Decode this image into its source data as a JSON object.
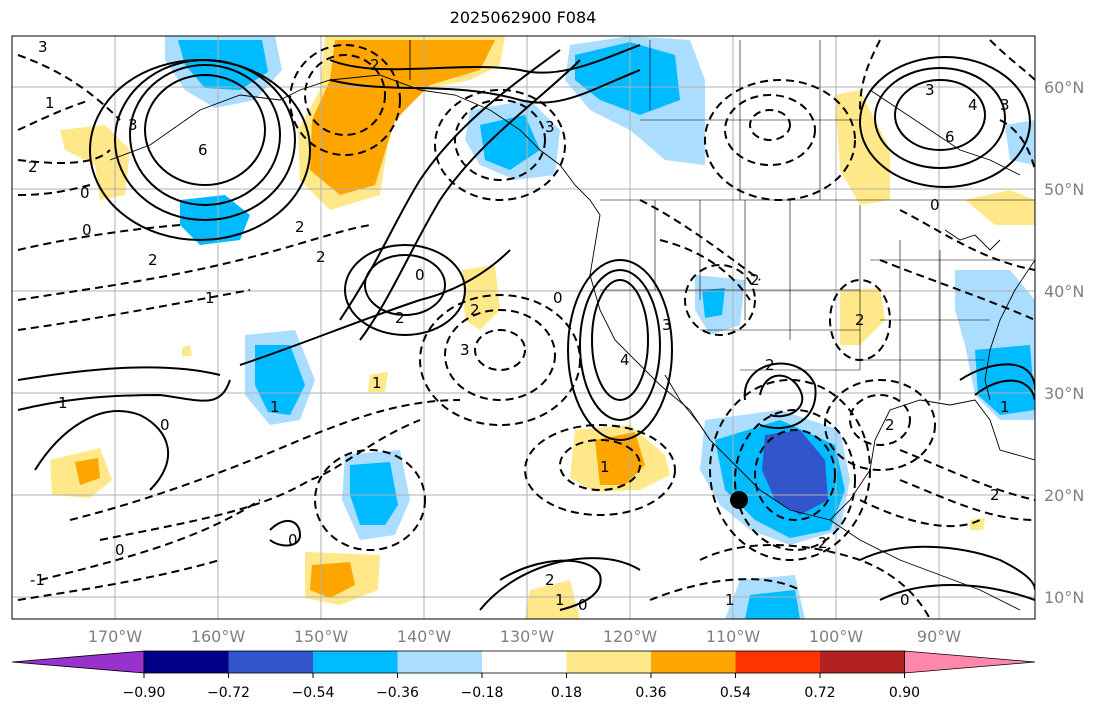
{
  "title": "2025062900 F084",
  "lon_labels": [
    "170°W",
    "160°W",
    "150°W",
    "140°W",
    "130°W",
    "120°W",
    "110°W",
    "100°W",
    "90°W"
  ],
  "lat_labels": [
    "60°N",
    "50°N",
    "40°N",
    "30°N",
    "20°N",
    "10°N"
  ],
  "colorbar": {
    "ticks": [
      "−0.90",
      "−0.72",
      "−0.54",
      "−0.36",
      "−0.18",
      "0.18",
      "0.36",
      "0.54",
      "0.72",
      "0.90"
    ],
    "colors": [
      "#9932cc",
      "#000088",
      "#3355cc",
      "#00bbff",
      "#aaddff",
      "#ffffff",
      "#ffe88a",
      "#ffa500",
      "#ff3300",
      "#b22222",
      "#ff88aa"
    ]
  },
  "contour_labels": [
    "3",
    "3",
    "6",
    "0",
    "0",
    "2",
    "1",
    "2",
    "0",
    "3",
    "3",
    "2",
    "2",
    "2",
    "3",
    "6",
    "4",
    "3",
    "4",
    "2",
    "1",
    "1",
    "2",
    "0",
    "0",
    "1",
    "2",
    "1",
    "2",
    "2",
    "0",
    "2",
    "1",
    "0",
    "0",
    "2",
    "-1",
    "2",
    "1",
    "0",
    "0",
    "3",
    "1",
    "2",
    "1"
  ],
  "storm_marker": "tropical-storm-marker"
}
